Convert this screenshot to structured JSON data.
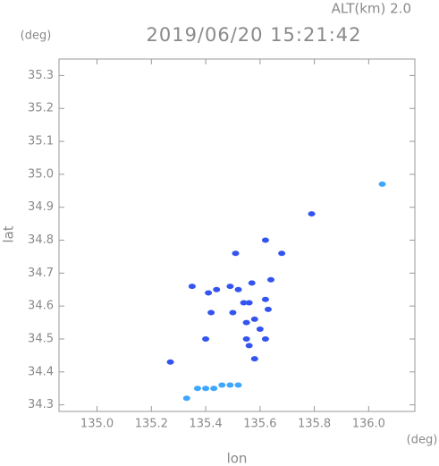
{
  "chart_data": {
    "type": "scatter",
    "altitude_label": "ALT(km) 2.0",
    "title": "2019/06/20 15:21:42",
    "y_unit": "(deg)",
    "x_unit": "(deg)",
    "ylabel": "lat",
    "xlabel": "lon",
    "xlim": [
      134.86,
      136.17
    ],
    "ylim": [
      34.28,
      35.35
    ],
    "xticks": [
      {
        "value": 135,
        "label": "135.0"
      },
      135.2,
      135.4,
      135.6,
      135.8,
      {
        "value": 136,
        "label": "136.0"
      }
    ],
    "yticks": [
      34.3,
      34.4,
      34.5,
      34.6,
      34.7,
      34.8,
      34.9,
      {
        "value": 35,
        "label": "35.0"
      },
      35.1,
      35.2,
      35.3
    ],
    "series": [
      {
        "color": "#3454f0",
        "x": [
          135.79,
          135.62,
          135.51,
          135.68,
          135.44,
          135.49,
          135.41,
          135.35,
          135.52,
          135.57,
          135.64,
          135.62,
          135.63,
          135.56,
          135.54,
          135.58,
          135.55,
          135.6,
          135.55,
          135.56,
          135.62,
          135.5,
          135.42,
          135.4,
          135.58,
          135.27
        ],
        "values": [
          34.88,
          34.8,
          34.76,
          34.76,
          34.65,
          34.66,
          34.64,
          34.66,
          34.65,
          34.67,
          34.68,
          34.62,
          34.59,
          34.61,
          34.61,
          34.56,
          34.55,
          34.53,
          34.5,
          34.48,
          34.5,
          34.58,
          34.58,
          34.5,
          34.44,
          34.43
        ]
      },
      {
        "color": "#3fa6ff",
        "x": [
          136.05,
          135.33,
          135.37,
          135.4,
          135.43,
          135.46,
          135.49,
          135.52
        ],
        "values": [
          34.97,
          34.32,
          34.35,
          34.35,
          34.35,
          34.36,
          34.36,
          34.36
        ]
      }
    ]
  }
}
